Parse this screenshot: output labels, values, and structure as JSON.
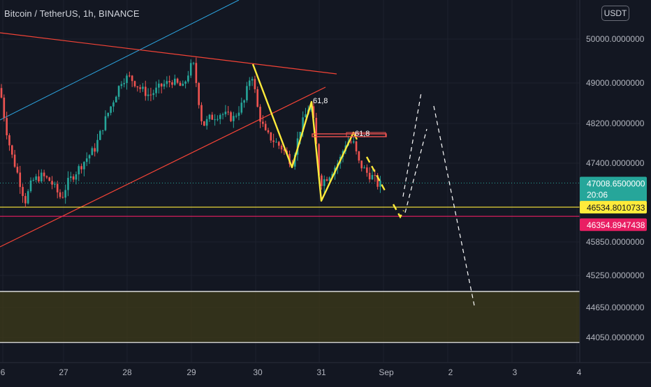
{
  "header": {
    "title": "Bitcoin / TetherUS, 1h, BINANCE",
    "currency_button": "USDT"
  },
  "price_tags": {
    "current_price": "47008.6500000",
    "countdown": "20:06",
    "yellow_line": "46534.8010733",
    "pink_line": "46354.8947438"
  },
  "annotations": {
    "fib_label_1": "61,8",
    "fib_label_2": "61,8"
  },
  "colors": {
    "background": "#131722",
    "up_candle": "#26a69a",
    "down_candle": "#ef5350",
    "trendline": "#f44336",
    "channel_line": "#2ca5e0",
    "zigzag": "#ffeb3b",
    "support_line": "#ffeb3b",
    "resistance_pink": "#e91e63",
    "zone_fill": "#3d3b1a",
    "projection": "#ffffff"
  },
  "chart_data": {
    "type": "candlestick",
    "title": "Bitcoin / TetherUS, 1h, BINANCE",
    "x_ticks": [
      "6",
      "27",
      "28",
      "29",
      "30",
      "31",
      "Sep",
      "2",
      "3",
      "4"
    ],
    "y_ticks": [
      50000,
      49000,
      48200,
      47400,
      45850,
      45250,
      44650,
      44050
    ],
    "y_tick_labels": [
      "50000.0000000",
      "49000.0000000",
      "48200.0000000",
      "47400.0000000",
      "45850.0000000",
      "45250.0000000",
      "44650.0000000",
      "44050.0000000"
    ],
    "ylim": [
      43600,
      50700
    ],
    "current_price": 47008.65,
    "horizontal_levels": [
      {
        "price": 46534.8010733,
        "color": "#ffeb3b"
      },
      {
        "price": 46354.8947438,
        "color": "#e91e63"
      }
    ],
    "zone": {
      "top": 44950,
      "bottom": 43950
    }
  }
}
